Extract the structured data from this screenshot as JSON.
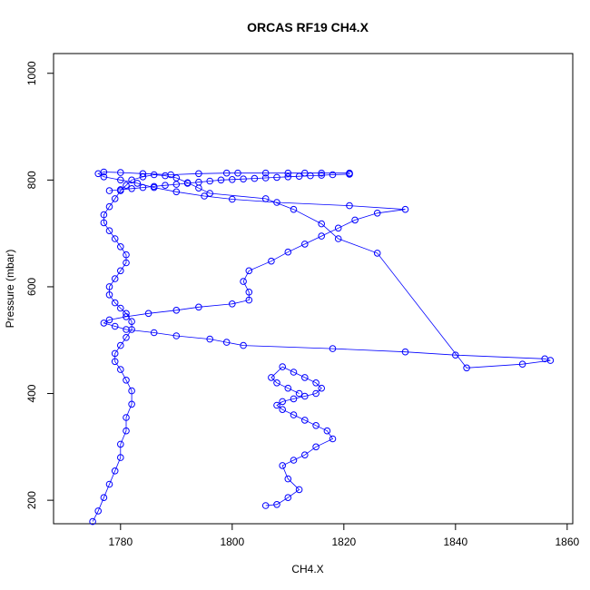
{
  "chart_data": {
    "type": "scatter",
    "title": "ORCAS RF19 CH4.X",
    "xlabel": "CH4.X",
    "ylabel": "Pressure (mbar)",
    "xlim": [
      1768,
      1861
    ],
    "ylim": [
      1037,
      156
    ],
    "y_reversed": true,
    "x_ticks": [
      1780,
      1800,
      1820,
      1840,
      1860
    ],
    "y_ticks": [
      200,
      400,
      600,
      800,
      1000
    ],
    "grid": false,
    "marker": "open-circle",
    "connect_points": true,
    "color": "#0000ff",
    "series": [
      {
        "x": [
          1775,
          1776,
          1777,
          1778,
          1779,
          1780,
          1780,
          1781,
          1781,
          1782,
          1782,
          1781,
          1780,
          1779,
          1779,
          1780,
          1781,
          1782,
          1782,
          1781,
          1780,
          1779,
          1778,
          1778,
          1779,
          1780,
          1781,
          1781,
          1780,
          1779,
          1778,
          1777,
          1777,
          1778,
          1779,
          1780,
          1781,
          1782,
          1784,
          1786,
          1788,
          1790,
          1792,
          1794,
          1796,
          1806,
          1811,
          1816,
          1819,
          1826,
          1842,
          1852,
          1857,
          1856,
          1840,
          1831,
          1818,
          1802,
          1799,
          1796,
          1790,
          1786,
          1781,
          1779,
          1777,
          1778,
          1781,
          1785,
          1790,
          1794,
          1800,
          1803,
          1803,
          1802,
          1803,
          1807,
          1810,
          1813,
          1816,
          1819,
          1822,
          1826,
          1831,
          1821,
          1808,
          1800,
          1795,
          1790,
          1786,
          1783,
          1780,
          1777,
          1776,
          1777,
          1780,
          1784,
          1789,
          1794,
          1799,
          1801,
          1806,
          1810,
          1813,
          1816,
          1821,
          1821,
          1821,
          1818,
          1816,
          1814,
          1812,
          1810,
          1808,
          1806,
          1804,
          1802,
          1800,
          1798,
          1796,
          1794,
          1792,
          1790,
          1788,
          1786,
          1784,
          1782,
          1780,
          1778
        ],
        "y": [
          160,
          180,
          205,
          230,
          255,
          280,
          305,
          330,
          355,
          380,
          405,
          425,
          445,
          460,
          475,
          490,
          505,
          520,
          535,
          550,
          560,
          570,
          585,
          600,
          615,
          630,
          645,
          660,
          675,
          690,
          705,
          720,
          735,
          750,
          765,
          780,
          790,
          800,
          806,
          810,
          808,
          804,
          795,
          785,
          775,
          765,
          745,
          718,
          690,
          663,
          448,
          455,
          462,
          465,
          472,
          478,
          484,
          490,
          496,
          502,
          508,
          514,
          520,
          526,
          532,
          538,
          544,
          550,
          556,
          562,
          568,
          575,
          590,
          610,
          630,
          648,
          665,
          680,
          695,
          710,
          725,
          738,
          745,
          752,
          758,
          764,
          770,
          778,
          786,
          794,
          800,
          806,
          812,
          815,
          814,
          812,
          810,
          812,
          813,
          813,
          813,
          813,
          813,
          813,
          813,
          812,
          811,
          810,
          809,
          808,
          807,
          806,
          805,
          804,
          803,
          802,
          801,
          800,
          798,
          796,
          794,
          792,
          790,
          788,
          786,
          784,
          782,
          780
        ]
      },
      {
        "x": [
          1806,
          1808,
          1810,
          1812,
          1810,
          1809,
          1811,
          1813,
          1815,
          1818,
          1817,
          1815,
          1813,
          1811,
          1809,
          1808,
          1809,
          1811,
          1813,
          1815,
          1816,
          1815,
          1813,
          1811,
          1809,
          1807,
          1808,
          1810,
          1812
        ],
        "y": [
          190,
          192,
          205,
          220,
          240,
          265,
          275,
          285,
          300,
          315,
          330,
          340,
          350,
          360,
          370,
          378,
          385,
          390,
          395,
          400,
          410,
          420,
          430,
          440,
          450,
          430,
          420,
          410,
          400
        ]
      }
    ]
  }
}
